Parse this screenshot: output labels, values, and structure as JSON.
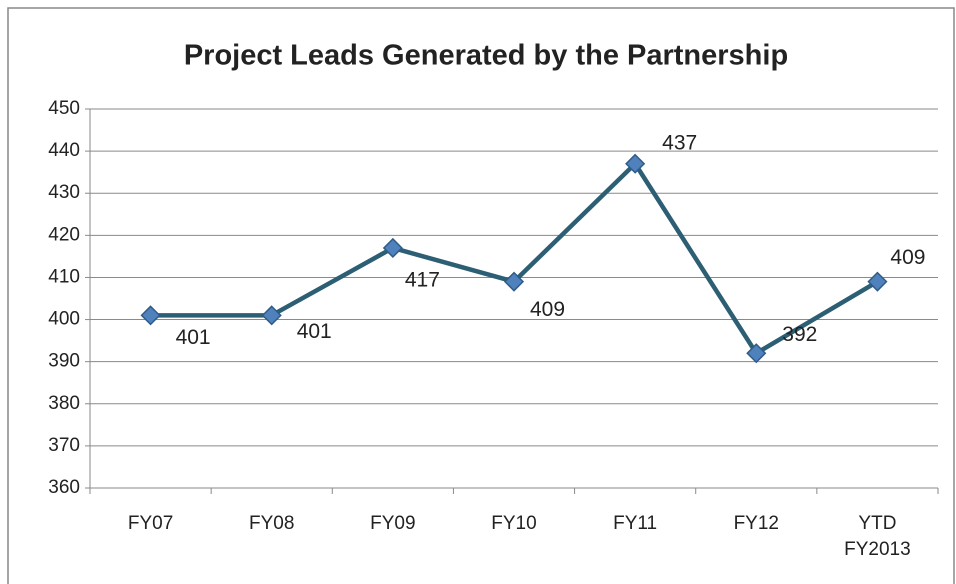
{
  "chart_data": {
    "type": "line",
    "title": "Project Leads Generated by the Partnership",
    "categories": [
      "FY07",
      "FY08",
      "FY09",
      "FY10",
      "FY11",
      "FY12",
      "YTD FY2013"
    ],
    "values": [
      401,
      401,
      417,
      409,
      437,
      392,
      409
    ],
    "color": "#2d5f74",
    "marker_color": "#4f81bd",
    "ylim": [
      360,
      450
    ],
    "yticks": [
      360,
      370,
      380,
      390,
      400,
      410,
      420,
      430,
      440,
      450
    ],
    "grid": true
  }
}
